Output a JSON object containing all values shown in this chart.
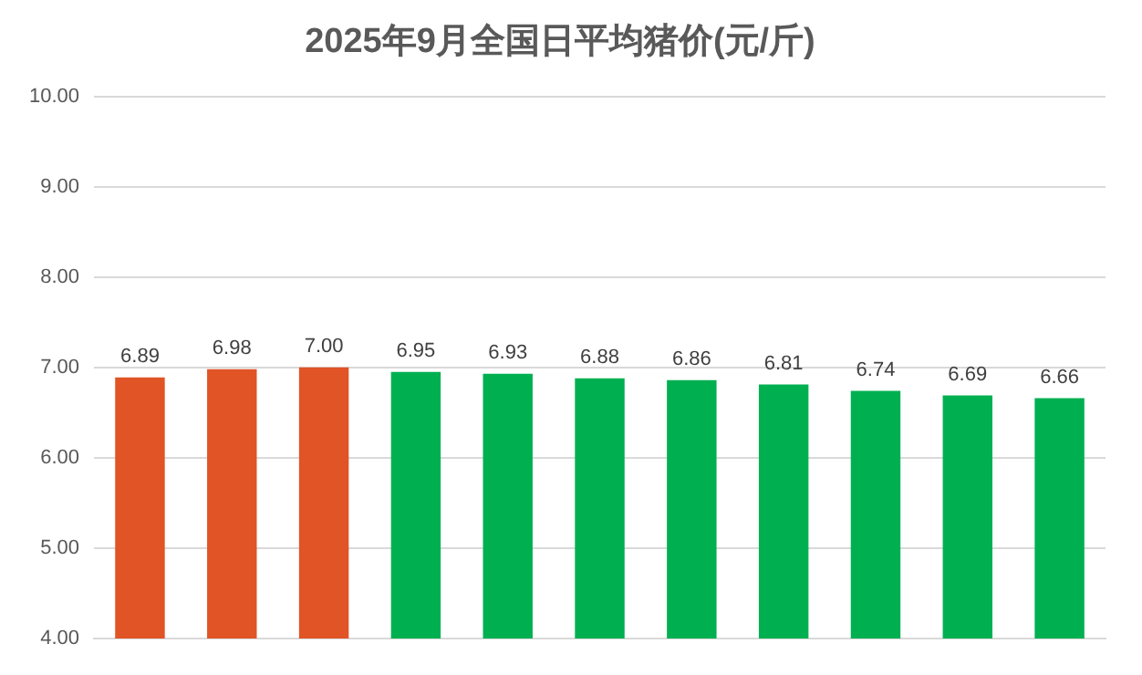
{
  "chart_data": {
    "type": "bar",
    "title": "2025年9月全国日平均猪价(元/斤)",
    "categories": [
      null,
      null,
      null,
      null,
      null,
      null,
      null,
      null,
      null,
      null,
      null
    ],
    "values": [
      6.89,
      6.98,
      7.0,
      6.95,
      6.93,
      6.88,
      6.86,
      6.81,
      6.74,
      6.69,
      6.66
    ],
    "value_labels": [
      "6.89",
      "6.98",
      "7.00",
      "6.95",
      "6.93",
      "6.88",
      "6.86",
      "6.81",
      "6.74",
      "6.69",
      "6.66"
    ],
    "colors": [
      "#e05426",
      "#e05426",
      "#e05426",
      "#00b050",
      "#00b050",
      "#00b050",
      "#00b050",
      "#00b050",
      "#00b050",
      "#00b050",
      "#00b050"
    ],
    "ylim": [
      4,
      10
    ],
    "yticks": [
      {
        "value": 4,
        "label": "4.00"
      },
      {
        "value": 5,
        "label": "5.00"
      },
      {
        "value": 6,
        "label": "6.00"
      },
      {
        "value": 7,
        "label": "7.00"
      },
      {
        "value": 8,
        "label": "8.00"
      },
      {
        "value": 9,
        "label": "9.00"
      },
      {
        "value": 10,
        "label": "10.00"
      }
    ],
    "grid": "y",
    "legend": false
  }
}
